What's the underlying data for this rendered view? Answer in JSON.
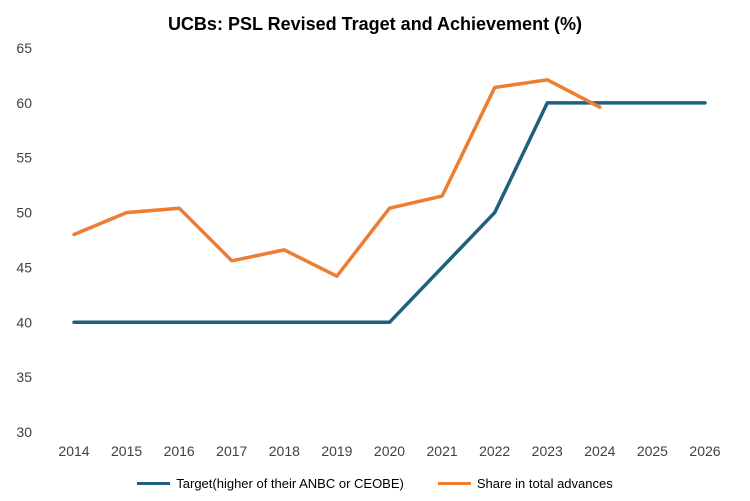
{
  "chart_data": {
    "type": "line",
    "title": "UCBs: PSL Revised Traget and Achievement (%)",
    "xlabel": "",
    "ylabel": "",
    "x": [
      "2014",
      "2015",
      "2016",
      "2017",
      "2018",
      "2019",
      "2020",
      "2021",
      "2022",
      "2023",
      "2024",
      "2025",
      "2026"
    ],
    "ylim": [
      30,
      65
    ],
    "yticks": [
      30,
      35,
      40,
      45,
      50,
      55,
      60,
      65
    ],
    "grid": false,
    "legend_position": "bottom",
    "series": [
      {
        "name": "Target(higher of their ANBC or CEOBE)",
        "color": "#1F5F7F",
        "values": [
          40,
          40,
          40,
          40,
          40,
          40,
          40,
          45,
          50,
          60,
          60,
          60,
          60
        ]
      },
      {
        "name": "Share in total advances",
        "color": "#ED7D31",
        "values": [
          48,
          50,
          50.4,
          45.6,
          46.6,
          44.2,
          50.4,
          51.5,
          61.4,
          62.1,
          59.6,
          null,
          null
        ]
      }
    ]
  }
}
